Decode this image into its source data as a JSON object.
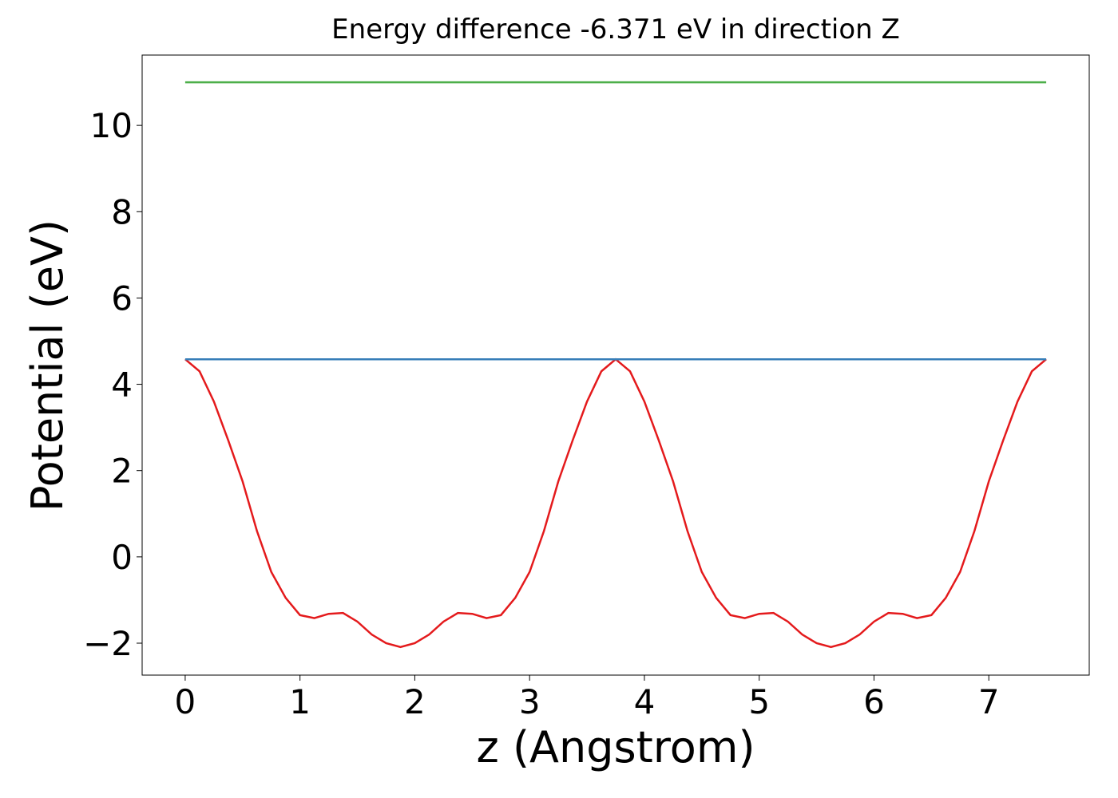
{
  "chart_data": {
    "type": "line",
    "title": "Energy difference -6.371 eV in direction Z",
    "x_label": "z (Angstrom)",
    "y_label": "Potential (eV)",
    "xlim": [
      -0.375,
      7.875
    ],
    "ylim": [
      -2.74,
      11.63
    ],
    "xticks": [
      0,
      1,
      2,
      3,
      4,
      5,
      6,
      7
    ],
    "yticks": [
      {
        "value": -2,
        "label": "−2"
      },
      0,
      2,
      4,
      6,
      8,
      10
    ],
    "series": [
      {
        "color": "#e41a1c",
        "x": [
          0,
          0.125,
          0.25,
          0.375,
          0.5,
          0.625,
          0.75,
          0.875,
          1,
          1.125,
          1.25,
          1.375,
          1.5,
          1.625,
          1.75,
          1.875,
          2,
          2.125,
          2.25,
          2.375,
          2.5,
          2.625,
          2.75,
          2.875,
          3,
          3.125,
          3.25,
          3.375,
          3.5,
          3.625,
          3.75,
          3.875,
          4,
          4.125,
          4.25,
          4.375,
          4.5,
          4.625,
          4.75,
          4.875,
          5,
          5.125,
          5.25,
          5.375,
          5.5,
          5.625,
          5.75,
          5.875,
          6,
          6.125,
          6.25,
          6.375,
          6.5,
          6.625,
          6.75,
          6.875,
          7,
          7.125,
          7.25,
          7.375,
          7.5
        ],
        "values": [
          4.58,
          4.3,
          3.6,
          2.7,
          1.75,
          0.6,
          -0.35,
          -0.95,
          -1.35,
          -1.42,
          -1.32,
          -1.3,
          -1.5,
          -1.8,
          -2.0,
          -2.09,
          -2.0,
          -1.8,
          -1.5,
          -1.3,
          -1.32,
          -1.42,
          -1.35,
          -0.95,
          -0.35,
          0.6,
          1.75,
          2.7,
          3.6,
          4.3,
          4.58,
          4.3,
          3.6,
          2.7,
          1.75,
          0.6,
          -0.35,
          -0.95,
          -1.35,
          -1.42,
          -1.32,
          -1.3,
          -1.5,
          -1.8,
          -2.0,
          -2.09,
          -2.0,
          -1.8,
          -1.5,
          -1.3,
          -1.32,
          -1.42,
          -1.35,
          -0.95,
          -0.35,
          0.6,
          1.75,
          2.7,
          3.6,
          4.3,
          4.58
        ]
      },
      {
        "color": "#4daf4a",
        "x": [
          0,
          7.5
        ],
        "values": [
          11.0,
          11.0
        ]
      },
      {
        "color": "#377eb8",
        "x": [
          0,
          7.5
        ],
        "values": [
          4.58,
          4.58
        ]
      }
    ]
  }
}
